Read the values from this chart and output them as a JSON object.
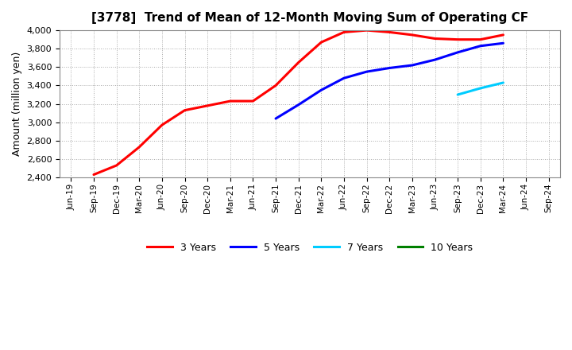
{
  "title": "[3778]  Trend of Mean of 12-Month Moving Sum of Operating CF",
  "ylabel": "Amount (million yen)",
  "ylim": [
    2400,
    4000
  ],
  "yticks": [
    2400,
    2600,
    2800,
    3000,
    3200,
    3400,
    3600,
    3800,
    4000
  ],
  "background_color": "#ffffff",
  "grid_color": "#aaaaaa",
  "x_labels": [
    "Jun-19",
    "Sep-19",
    "Dec-19",
    "Mar-20",
    "Jun-20",
    "Sep-20",
    "Dec-20",
    "Mar-21",
    "Jun-21",
    "Sep-21",
    "Dec-21",
    "Mar-22",
    "Jun-22",
    "Sep-22",
    "Dec-22",
    "Mar-23",
    "Jun-23",
    "Sep-23",
    "Dec-23",
    "Mar-24",
    "Jun-24",
    "Sep-24"
  ],
  "series": [
    {
      "label": "3 Years",
      "color": "#ff0000",
      "linewidth": 2.2,
      "x": [
        1,
        2,
        3,
        4,
        5,
        6,
        7,
        8,
        9,
        10,
        11,
        12,
        13,
        14,
        15,
        16,
        17,
        18,
        19
      ],
      "y": [
        2430,
        2530,
        2730,
        2970,
        3130,
        3180,
        3230,
        3230,
        3400,
        3650,
        3870,
        3980,
        4000,
        3980,
        3950,
        3910,
        3900,
        3900,
        3950
      ]
    },
    {
      "label": "5 Years",
      "color": "#0000ff",
      "linewidth": 2.2,
      "x": [
        9,
        10,
        11,
        12,
        13,
        14,
        15,
        16,
        17,
        18,
        19
      ],
      "y": [
        3040,
        3190,
        3350,
        3480,
        3550,
        3590,
        3620,
        3680,
        3760,
        3830,
        3860
      ]
    },
    {
      "label": "7 Years",
      "color": "#00ccff",
      "linewidth": 2.2,
      "x": [
        17,
        18,
        19
      ],
      "y": [
        3300,
        3370,
        3430
      ]
    },
    {
      "label": "10 Years",
      "color": "#008000",
      "linewidth": 2.2,
      "x": [],
      "y": []
    }
  ]
}
